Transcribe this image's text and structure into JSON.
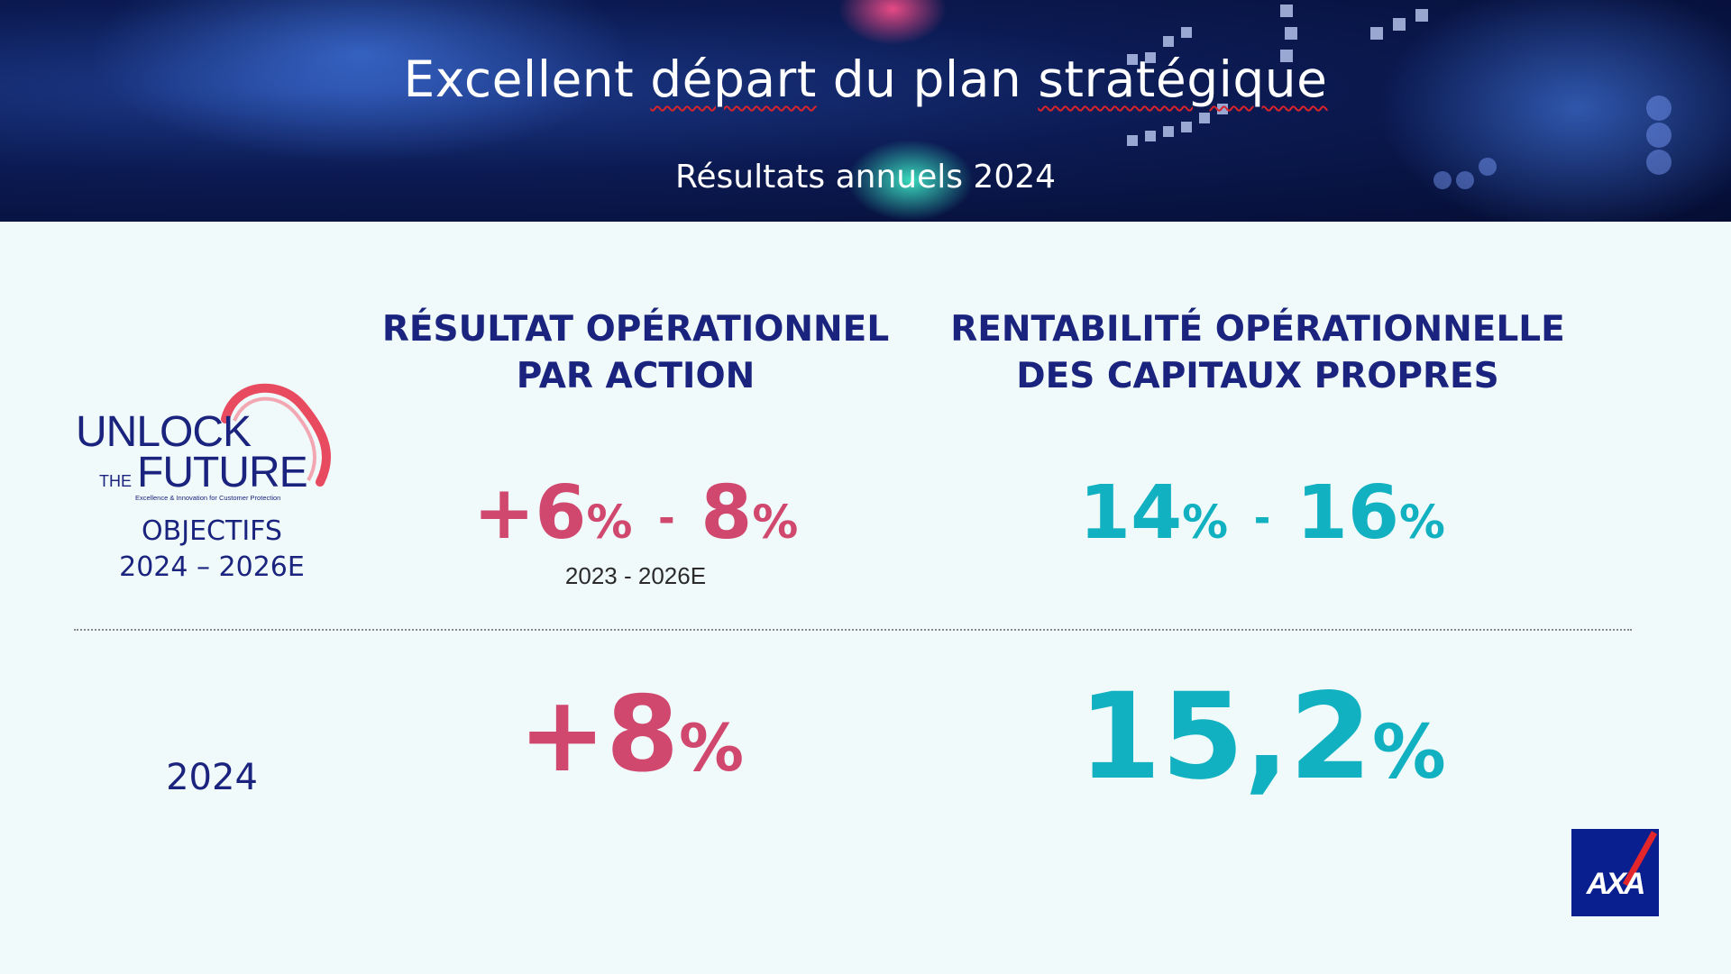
{
  "header": {
    "title_part1": "Excellent ",
    "title_part2": "départ",
    "title_part3": " du plan ",
    "title_part4": "stratégique",
    "subtitle": "Résultats annuels 2024"
  },
  "columns": [
    {
      "heading_line1": "RÉSULTAT OPÉRATIONNEL",
      "heading_line2": "PAR ACTION",
      "target_low": "+6",
      "target_high": "8",
      "target_period": "2023 - 2026E",
      "actual": "+8"
    },
    {
      "heading_line1": "RENTABILITÉ OPÉRATIONNELLE",
      "heading_line2": "DES CAPITAUX PROPRES",
      "target_low": "14",
      "target_high": "16",
      "actual": "15,2"
    }
  ],
  "symbols": {
    "percent": "%",
    "dash": "-"
  },
  "logo": {
    "line1": "UNLOCK",
    "line2_small": "THE",
    "line2": "FUTURE",
    "tagline": "Excellence & Innovation for Customer Protection"
  },
  "rows": {
    "objectives_label": "OBJECTIFS",
    "objectives_period": "2024 – 2026E",
    "year_label": "2024"
  },
  "brand": {
    "name": "AXA"
  },
  "colors": {
    "navy": "#1a237e",
    "pink": "#d1486f",
    "teal": "#12b1c1",
    "axa_blue": "#0a1f8f",
    "axa_red": "#e3262b"
  }
}
